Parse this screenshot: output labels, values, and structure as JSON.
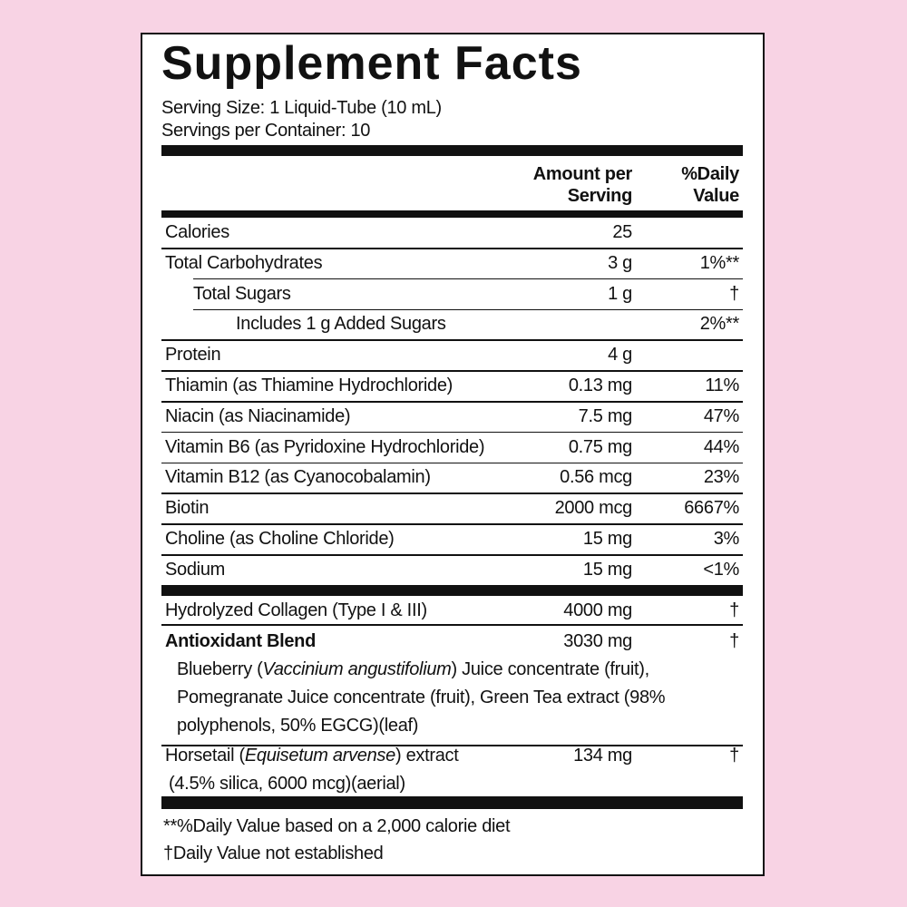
{
  "header": {
    "title": "Supplement Facts",
    "serving_size": "Serving Size:  1 Liquid-Tube (10 mL)",
    "servings_per_container": "Servings per Container:  10"
  },
  "columns": {
    "amount": "Amount per Serving",
    "daily_value": "%Daily Value"
  },
  "nutrients": [
    {
      "label": "Calories",
      "amount": "25"
    },
    {
      "label": "Total Carbohydrates",
      "amount": "3 g",
      "daily_value": "1%**"
    },
    {
      "label": "Total Sugars",
      "amount": "1 g",
      "daily_value": "†"
    },
    {
      "label": "Includes 1 g Added Sugars",
      "daily_value": "2%**"
    },
    {
      "label": "Protein",
      "amount": "4 g"
    },
    {
      "label": "Thiamin (as Thiamine Hydrochloride)",
      "amount": "0.13 mg",
      "daily_value": "11%"
    },
    {
      "label": "Niacin (as Niacinamide)",
      "amount": "7.5 mg",
      "daily_value": "47%"
    },
    {
      "label": "Vitamin B6 (as Pyridoxine Hydrochloride)",
      "amount": "0.75 mg",
      "daily_value": "44%"
    },
    {
      "label": "Vitamin B12 (as Cyanocobalamin)",
      "amount": "0.56 mcg",
      "daily_value": "23%"
    },
    {
      "label": "Biotin",
      "amount": "2000 mcg",
      "daily_value": "6667%"
    },
    {
      "label": "Choline (as Choline Chloride)",
      "amount": "15 mg",
      "daily_value": "3%"
    },
    {
      "label": "Sodium",
      "amount": "15 mg",
      "daily_value": "<1%"
    }
  ],
  "other": {
    "collagen": {
      "label": "Hydrolyzed Collagen (Type I & III)",
      "amount": "4000 mg",
      "daily_value": "†"
    },
    "antioxidant": {
      "label": "Antioxidant Blend",
      "amount": "3030 mg",
      "daily_value": "†",
      "description": [
        "Blueberry (",
        "Vaccinium angustifolium",
        ") Juice concentrate (fruit), Pomegranate Juice concentrate (fruit), Green Tea extract (98% polyphenols, 50% EGCG)(leaf)"
      ]
    },
    "horsetail": {
      "label": [
        "Horsetail (",
        "Equisetum arvense",
        ") extract"
      ],
      "detail": "(4.5% silica, 6000 mcg)(aerial)",
      "amount": "134 mg",
      "daily_value": "†"
    }
  },
  "footnotes": [
    "**%Daily Value based on a 2,000 calorie diet",
    "†Daily Value not established"
  ]
}
